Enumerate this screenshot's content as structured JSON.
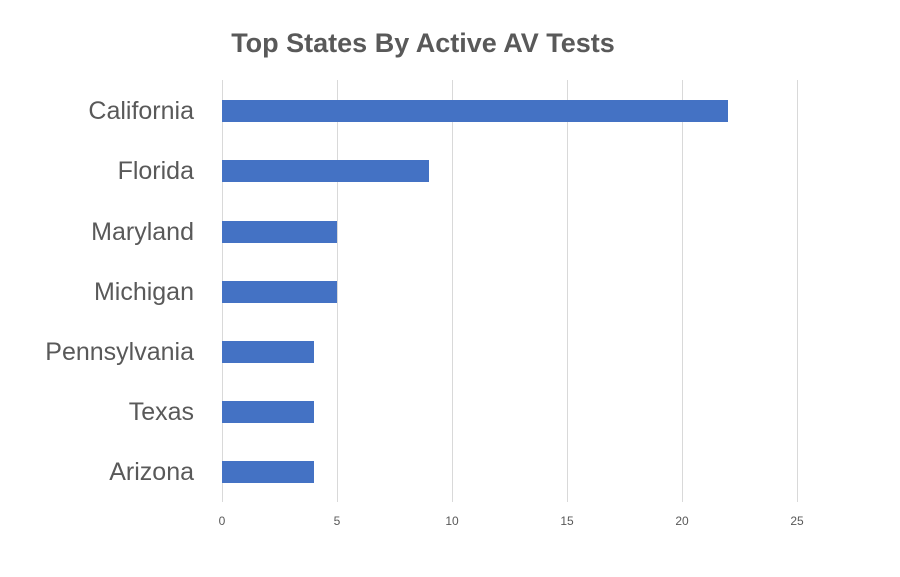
{
  "chart_data": {
    "type": "bar",
    "orientation": "horizontal",
    "title": "Top States By Active AV Tests",
    "categories": [
      "California",
      "Florida",
      "Maryland",
      "Michigan",
      "Pennsylvania",
      "Texas",
      "Arizona"
    ],
    "values": [
      22,
      9,
      5,
      5,
      4,
      4,
      4
    ],
    "xlabel": "",
    "ylabel": "",
    "xlim": [
      0,
      25
    ],
    "x_ticks": [
      "0",
      "5",
      "10",
      "15",
      "20",
      "25"
    ],
    "grid": true,
    "legend": null,
    "bar_color": "#4472C4"
  }
}
